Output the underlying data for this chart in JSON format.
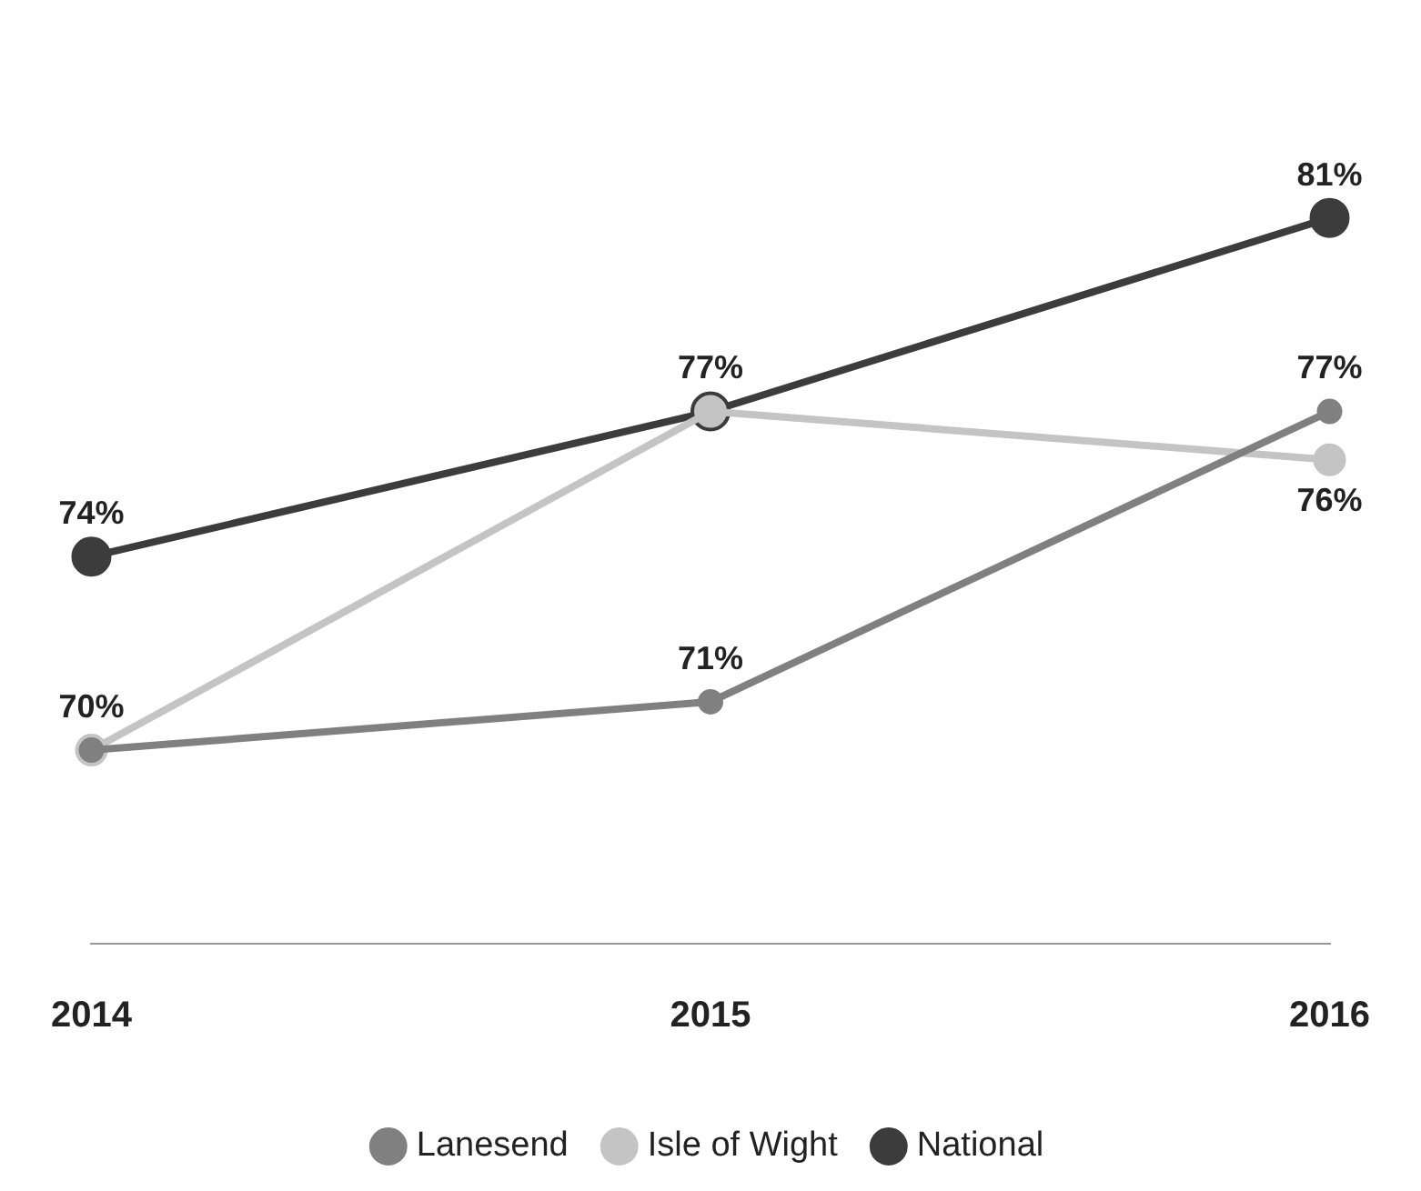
{
  "chart_data": {
    "type": "line",
    "categories": [
      "2014",
      "2015",
      "2016"
    ],
    "series": [
      {
        "name": "Lanesend",
        "color": "#808080",
        "values": [
          70,
          71,
          77
        ],
        "value_labels": [
          "70%",
          "71%",
          "77%"
        ]
      },
      {
        "name": "Isle of Wight",
        "color": "#c4c4c4",
        "values": [
          70,
          77,
          76
        ],
        "value_labels": [
          null,
          null,
          "76%"
        ]
      },
      {
        "name": "National",
        "color": "#3c3c3c",
        "values": [
          74,
          77,
          81
        ],
        "value_labels": [
          "74%",
          "77%",
          "81%"
        ]
      }
    ],
    "tick_labels": "x",
    "grid": false,
    "legend": "bottom",
    "marker": "circle",
    "line_style": "solid"
  }
}
